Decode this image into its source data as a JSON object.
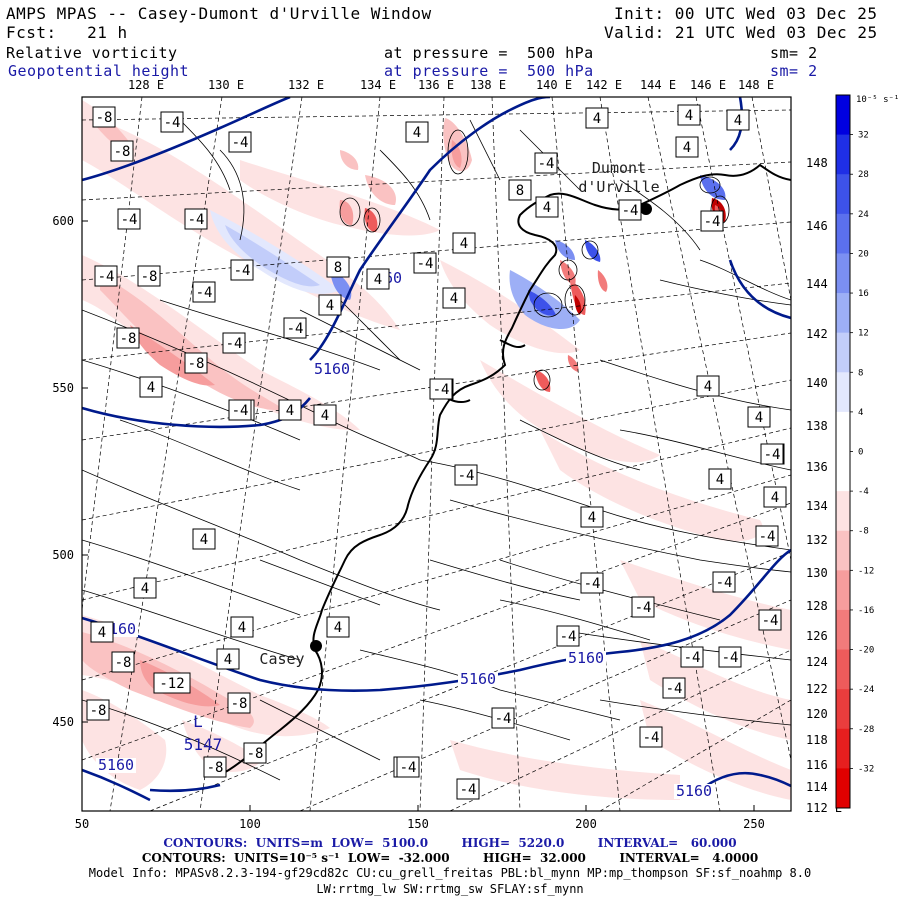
{
  "header": {
    "title": "AMPS MPAS -- Casey-Dumont d'Urville Window",
    "init": "Init: 00 UTC Wed 03 Dec 25",
    "forecast": "Fcst:   21 h",
    "valid": "Valid: 21 UTC Wed 03 Dec 25",
    "field1": {
      "name": "Relative vorticity",
      "level": "at pressure =  500 hPa",
      "smooth": "sm= 2"
    },
    "field2": {
      "name": "Geopotential height",
      "level": "at pressure =  500 hPa",
      "smooth": "sm= 2"
    }
  },
  "top_lon_labels": [
    "128 E",
    "130 E",
    "132 E",
    "134 E",
    "136 E",
    "138 E",
    "140 E",
    "142 E",
    "144 E",
    "146 E",
    "148 E"
  ],
  "right_lon_labels": [
    "148 E",
    "146 E",
    "144 E",
    "142 E",
    "140 E",
    "138 E",
    "136 E",
    "134 E",
    "132 E",
    "130 E",
    "128 E",
    "126 E",
    "124 E",
    "122 E",
    "120 E",
    "118 E",
    "116 E",
    "114 E",
    "112 E"
  ],
  "x_ticks": [
    "50",
    "100",
    "150",
    "200",
    "250"
  ],
  "y_ticks": [
    "600",
    "550",
    "500",
    "450"
  ],
  "stations": [
    {
      "name": "Dumont\nd'Urville",
      "line1": "Dumont",
      "line2": "d'Urville"
    },
    {
      "name": "Casey"
    }
  ],
  "height_labels": [
    "5160",
    "5160",
    "5160",
    "5160",
    "5160",
    "5160",
    "5160"
  ],
  "low_marker": {
    "letter": "L",
    "value": "5147"
  },
  "vort_labels": [
    "-8",
    "-4",
    "-8",
    "-4",
    "-4",
    "-4",
    "-4",
    "-8",
    "-4",
    "-4",
    "-8",
    "-8",
    "-4",
    "-4",
    "4",
    "4",
    "8",
    "4",
    "4",
    "-4",
    "4",
    "4",
    "4",
    "4",
    "8",
    "4",
    "4",
    "4",
    "4",
    "4",
    "-4",
    "-4",
    "-4",
    "4",
    "4",
    "4",
    "4",
    "4",
    "4",
    "4",
    "4",
    "4",
    "4",
    "4",
    "4",
    "-4",
    "-4",
    "-4",
    "-4",
    "-4",
    "-4",
    "-4",
    "-4",
    "-4",
    "-4",
    "-4",
    "-8",
    "-12",
    "-8",
    "-8",
    "-8",
    "-8",
    "-4",
    "-4",
    "-4",
    "4",
    "4",
    "4",
    "4",
    "4",
    "-4",
    "-4",
    "-4",
    "-4"
  ],
  "colorbar": {
    "unit": "10⁻⁵ s⁻¹",
    "labels": [
      "32",
      "28",
      "24",
      "20",
      "16",
      "12",
      "8",
      "4",
      "0",
      "-4",
      "-8",
      "-12",
      "-16",
      "-20",
      "-24",
      "-28",
      "-32"
    ],
    "colors": [
      "#0000e0",
      "#1f2fe6",
      "#3d52ea",
      "#5b70ee",
      "#7b8ff2",
      "#9daff6",
      "#c2cdfa",
      "#e3e8fd",
      "#ffffff",
      "#ffffff",
      "#fde3e3",
      "#fac2c2",
      "#f69d9d",
      "#f27b7b",
      "#ee5b5b",
      "#ea3d3d",
      "#e61f1f",
      "#e00000"
    ]
  },
  "footer": {
    "line1": "CONTOURS:  UNITS=m  LOW=  5100.0        HIGH=  5220.0        INTERVAL=   60.000",
    "line2": "CONTOURS:  UNITS=10⁻⁵ s⁻¹  LOW=  -32.000        HIGH=  32.000        INTERVAL=   4.0000",
    "line3": "Model Info: MPASv8.2.3-194-gf29cd82c CU:cu_grell_freitas PBL:bl_mynn MP:mp_thompson SF:sf_noahmp 8.0",
    "line4": "LW:rrtmg_lw SW:rrtmg_sw SFLAY:sf_mynn"
  },
  "colors": {
    "height_contour": "#001a8c",
    "label_blue": "#1a1aa6"
  }
}
